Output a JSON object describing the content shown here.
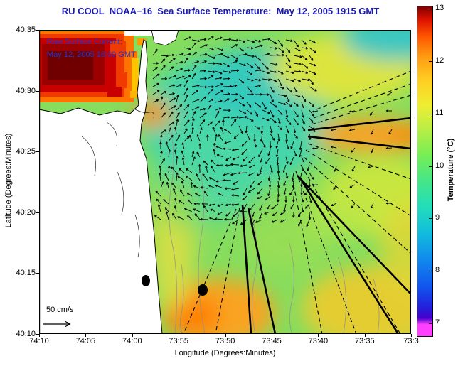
{
  "title": "RU COOL  NOAA−16  Sea Surface Temperature:  May 12, 2005 1915 GMT",
  "annotations": {
    "raw_current_line1": "Raw Surface Current:",
    "raw_current_line2": "May 12, 2005 18:00 GMT",
    "scale_label": "50 cm/s"
  },
  "axes": {
    "xlabel": "Longitude (Degrees:Minutes)",
    "ylabel": "Latitude (Degrees:Minutes)",
    "xticks": [
      "74:10",
      "74:05",
      "74:00",
      "73:55",
      "73:50",
      "73:45",
      "73:40",
      "73:35",
      "73:3"
    ],
    "yticks": [
      "40:35",
      "40:30",
      "40:25",
      "40:20",
      "40:15",
      "40:10"
    ]
  },
  "colorbar": {
    "label": "Temperature (°C)",
    "ticks": [
      "13",
      "12",
      "11",
      "10",
      "9",
      "8",
      "7"
    ]
  },
  "colors": {
    "title_text": "#1b1bb3",
    "annotation_text": "#2233cc",
    "warm_plume": "#700000",
    "cool_eddy": "#3fd4b2",
    "land": "#ffffff"
  },
  "chart_data": {
    "type": "heatmap",
    "title": "RU COOL NOAA-16 Sea Surface Temperature: May 12, 2005 1915 GMT",
    "xlabel": "Longitude (Degrees:Minutes)",
    "ylabel": "Latitude (Degrees:Minutes)",
    "x_range": [
      "74:10",
      "73:30"
    ],
    "y_range": [
      "40:10",
      "40:35"
    ],
    "colorbar_label": "Temperature (°C)",
    "colorbar_ticks": [
      13,
      12,
      11,
      10,
      9,
      8,
      7
    ],
    "temperature_range_c": [
      6.75,
      13
    ],
    "features": [
      {
        "name": "very warm plume",
        "location": "northwest corner (Raritan Bay, ~74:08, 40:31)",
        "temperature_c": 12.8
      },
      {
        "name": "cool patch with eddy-like surface current vectors",
        "location": "center, ~73:55-73:42, 40:20-40:33",
        "temperature_c": 9.3
      },
      {
        "name": "warm band",
        "location": "eastern side near 40:26-40:27",
        "temperature_c": 11.7
      },
      {
        "name": "warm patch",
        "location": "south-central near 73:57, 40:12-40:14",
        "temperature_c": 11.6
      },
      {
        "name": "warm area",
        "location": "southeast corner",
        "temperature_c": 11.2
      },
      {
        "name": "background shelf water",
        "location": "most of domain",
        "temperature_c": 10.2
      }
    ],
    "overlays": [
      "raw surface current vector field dated May 12, 2005 18:00 GMT",
      "solid and dashed radial coverage lines fanning from the east",
      "two black station dots near 74:01 40:15 and 73:57 40:14",
      "50 cm/s velocity scale arrow at lower left",
      "New Jersey coastline with land shown white and gray bathymetry contours"
    ]
  }
}
